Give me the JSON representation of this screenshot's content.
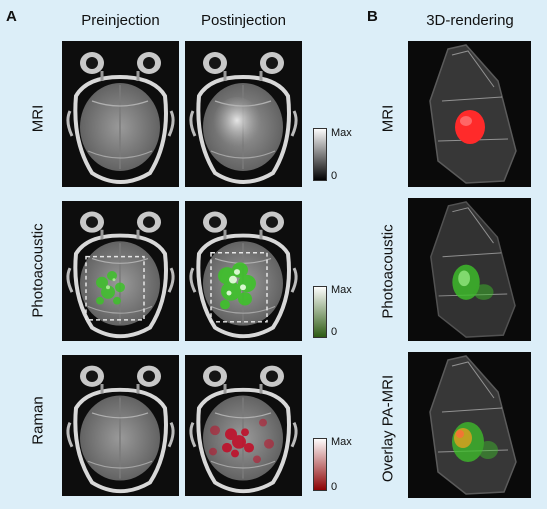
{
  "panel_a": {
    "letter": "A",
    "columns": [
      "Preinjection",
      "Postinjection"
    ],
    "rows": [
      {
        "label": "MRI",
        "colorbar": {
          "max": "Max",
          "min": "0",
          "top": "#ffffff",
          "bottom": "#000000"
        }
      },
      {
        "label": "Photoacoustic",
        "colorbar": {
          "max": "Max",
          "min": "0",
          "top": "#ffffff",
          "bottom": "#2c5a12"
        }
      },
      {
        "label": "Raman",
        "colorbar": {
          "max": "Max",
          "min": "0",
          "top": "#ffffff",
          "bottom": "#8b0000"
        }
      }
    ]
  },
  "panel_b": {
    "letter": "B",
    "column": "3D-rendering",
    "rows": [
      {
        "label": "MRI"
      },
      {
        "label": "Photoacoustic"
      },
      {
        "label": "Overlay PA-MRI"
      }
    ]
  },
  "colors": {
    "background": "#dceef8",
    "mri_tumor": "#ff2a2a",
    "pa_signal": "#3ec22a",
    "raman_signal": "#c0102a"
  }
}
